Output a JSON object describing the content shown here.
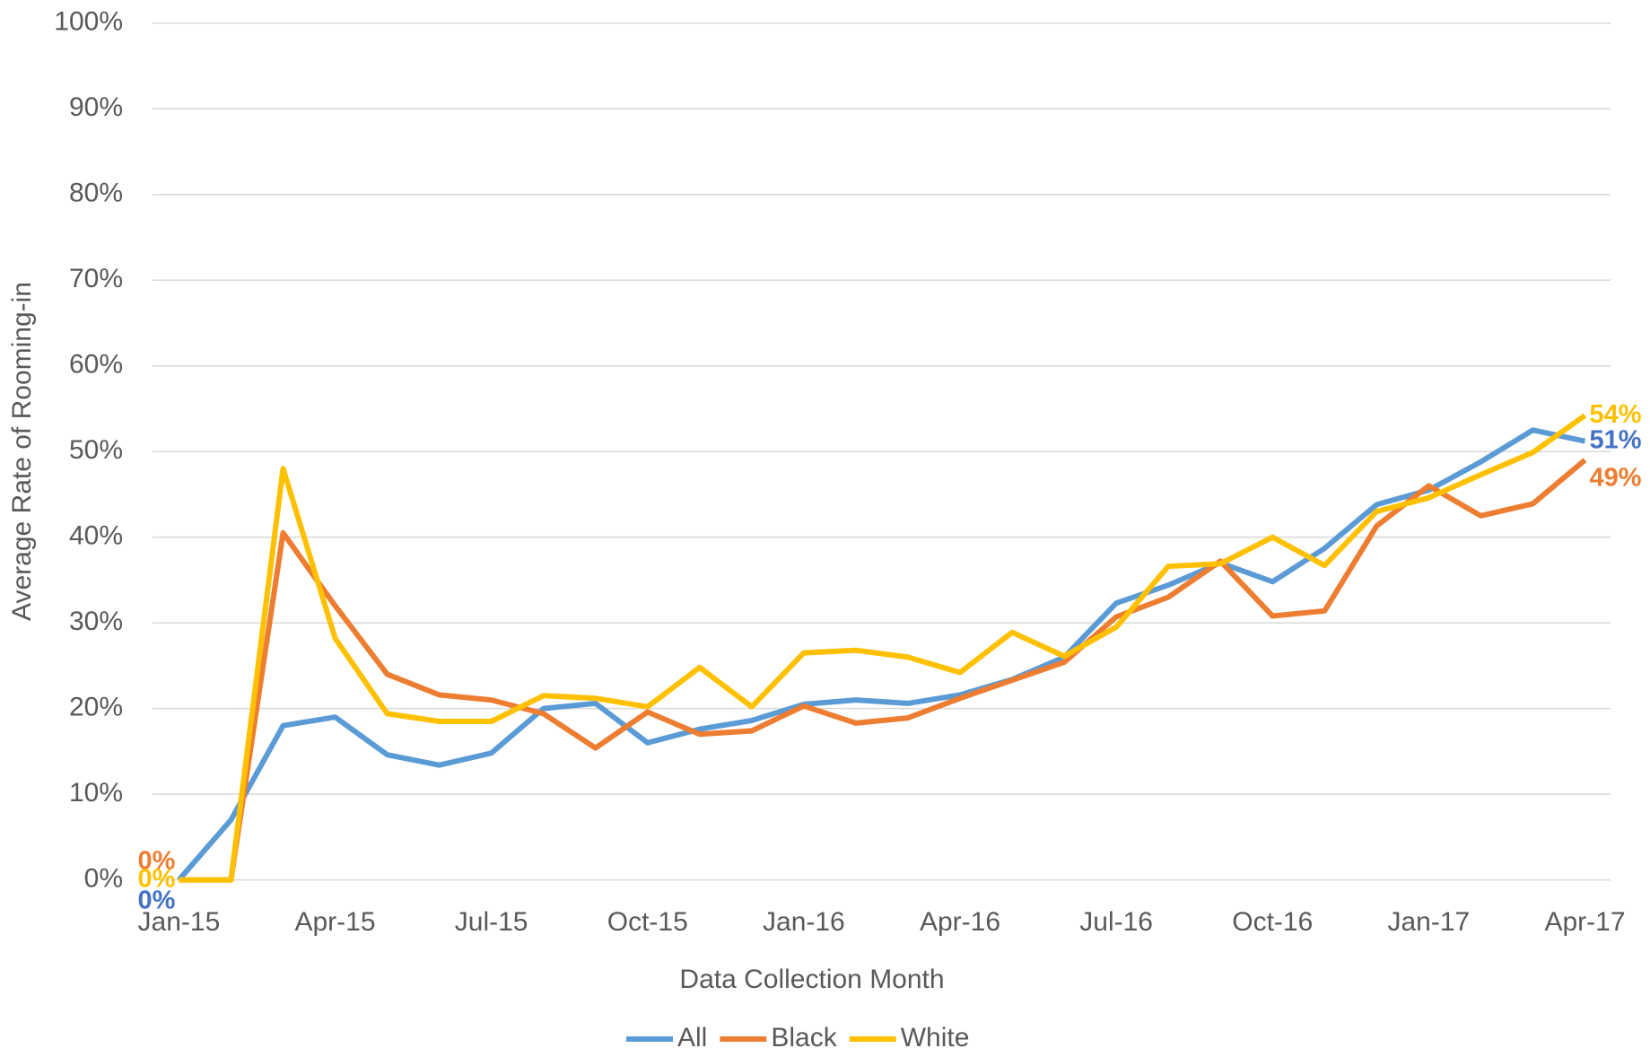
{
  "chart_data": {
    "type": "line",
    "y_label": "Average Rate of Rooming-in",
    "x_label": "Data Collection Month",
    "categories": [
      "Jan-15",
      null,
      null,
      "Apr-15",
      null,
      null,
      "Jul-15",
      null,
      null,
      "Oct-15",
      null,
      null,
      "Jan-16",
      null,
      null,
      "Apr-16",
      null,
      null,
      "Jul-16",
      null,
      null,
      "Oct-16",
      null,
      null,
      "Jan-17",
      null,
      null,
      "Apr-17"
    ],
    "ylim": [
      0,
      100
    ],
    "yticks": [
      {
        "value": 0,
        "label": "0%"
      },
      {
        "value": 10,
        "label": "10%"
      },
      {
        "value": 20,
        "label": "20%"
      },
      {
        "value": 30,
        "label": "30%"
      },
      {
        "value": 40,
        "label": "40%"
      },
      {
        "value": 50,
        "label": "50%"
      },
      {
        "value": 60,
        "label": "60%"
      },
      {
        "value": 70,
        "label": "70%"
      },
      {
        "value": 80,
        "label": "80%"
      },
      {
        "value": 90,
        "label": "90%"
      },
      {
        "value": 100,
        "label": "100%"
      }
    ],
    "grid": true,
    "legend": "bottom",
    "series": [
      {
        "name": "All",
        "color": "#5b9bd5",
        "label_color": "#4472c4",
        "values": [
          0,
          7,
          18,
          19,
          14.6,
          13.4,
          14.8,
          20,
          20.6,
          16,
          17.6,
          18.6,
          20.5,
          21,
          20.6,
          21.6,
          23.4,
          26,
          32.3,
          34.4,
          37,
          34.8,
          38.7,
          43.8,
          45.5,
          48.8,
          52.5,
          51.2
        ],
        "value_labels": [
          "0%",
          null,
          null,
          null,
          null,
          null,
          null,
          null,
          null,
          null,
          null,
          null,
          null,
          null,
          null,
          null,
          null,
          null,
          null,
          null,
          null,
          null,
          null,
          null,
          null,
          null,
          null,
          "51%"
        ]
      },
      {
        "name": "Black",
        "color": "#ed7d31",
        "label_color": "#ed7d31",
        "values": [
          0,
          0,
          40.5,
          32,
          24,
          21.6,
          21,
          19.4,
          15.4,
          19.6,
          17,
          17.4,
          20.3,
          18.3,
          18.9,
          21.2,
          23.3,
          25.4,
          30.7,
          33,
          37.2,
          30.8,
          31.4,
          41.3,
          46,
          42.5,
          43.9,
          49
        ],
        "value_labels": [
          "0%",
          null,
          null,
          null,
          null,
          null,
          null,
          null,
          null,
          null,
          null,
          null,
          null,
          null,
          null,
          null,
          null,
          null,
          null,
          null,
          null,
          null,
          null,
          null,
          null,
          null,
          null,
          "49%"
        ]
      },
      {
        "name": "White",
        "color": "#ffc000",
        "label_color": "#ffc000",
        "values": [
          0,
          0,
          48,
          28.2,
          19.4,
          18.5,
          18.5,
          21.5,
          21.2,
          20.2,
          24.8,
          20.2,
          26.5,
          26.8,
          26,
          24.2,
          28.9,
          26.1,
          29.5,
          36.6,
          36.9,
          40,
          36.7,
          43,
          44.6,
          47.3,
          49.9,
          54.2
        ],
        "value_labels": [
          "0%",
          null,
          null,
          null,
          null,
          null,
          null,
          null,
          null,
          null,
          null,
          null,
          null,
          null,
          null,
          null,
          null,
          null,
          null,
          null,
          null,
          null,
          null,
          null,
          null,
          null,
          null,
          "54%"
        ]
      }
    ]
  }
}
